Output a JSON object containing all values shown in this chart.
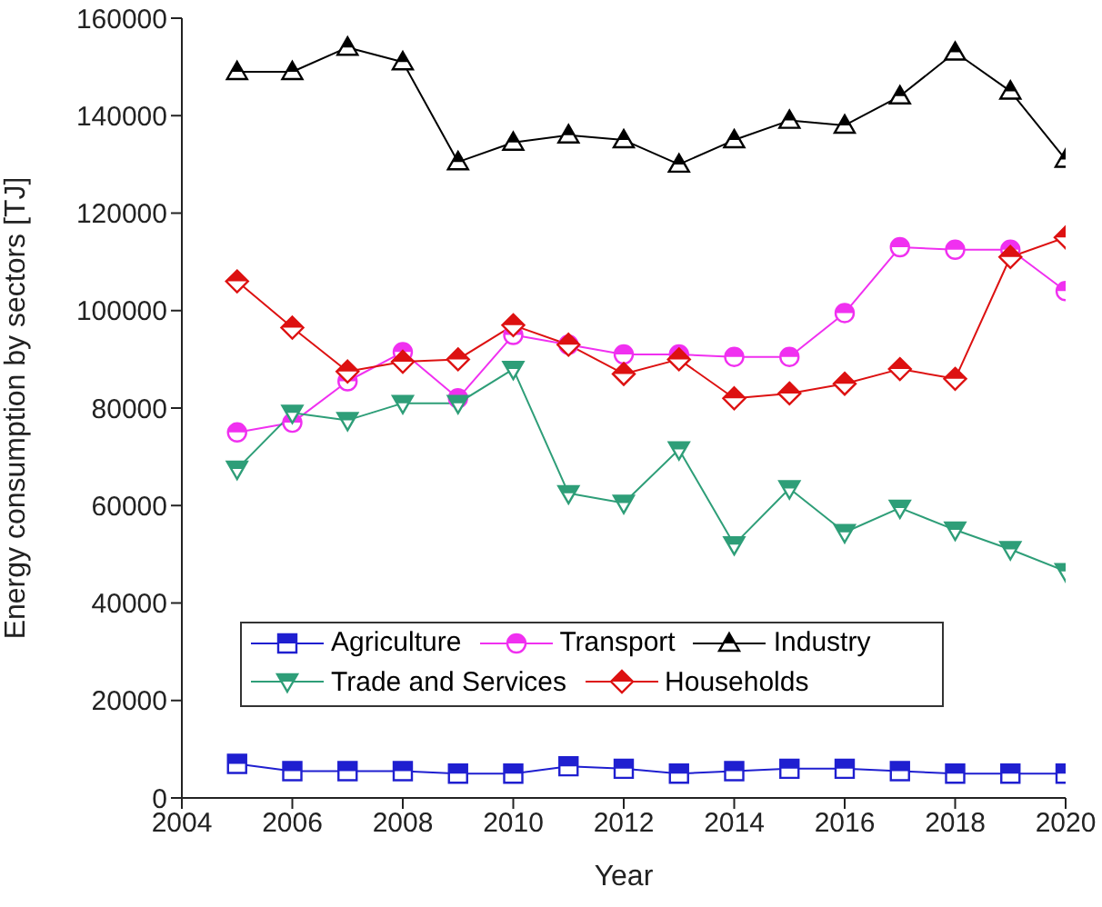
{
  "chart_data": {
    "type": "line",
    "xlabel": "Year",
    "ylabel": "Energy consumption by sectors  [TJ]",
    "x": [
      2005,
      2006,
      2007,
      2008,
      2009,
      2010,
      2011,
      2012,
      2013,
      2014,
      2015,
      2016,
      2017,
      2018,
      2019,
      2020
    ],
    "xlim": [
      2004,
      2020
    ],
    "xticks": [
      2004,
      2006,
      2008,
      2010,
      2012,
      2014,
      2016,
      2018,
      2020
    ],
    "ylim": [
      0,
      160000
    ],
    "yticks": [
      0,
      20000,
      40000,
      60000,
      80000,
      100000,
      120000,
      140000,
      160000
    ],
    "grid": false,
    "legend": "bottom left",
    "line_style": "solid",
    "series": [
      {
        "name": "Agriculture",
        "color": "#1f1fd0",
        "marker": "square",
        "values": [
          7000,
          5500,
          5500,
          5500,
          5000,
          5000,
          6500,
          6000,
          5000,
          5500,
          6000,
          6000,
          5500,
          5000,
          5000,
          5000
        ]
      },
      {
        "name": "Transport",
        "color": "#f030f0",
        "marker": "circle",
        "values": [
          75000,
          77000,
          85500,
          91500,
          82000,
          95000,
          93000,
          91000,
          91000,
          90500,
          90500,
          99500,
          113000,
          112500,
          112500,
          104000
        ]
      },
      {
        "name": "Industry",
        "color": "#000000",
        "marker": "triangle",
        "values": [
          149000,
          149000,
          154000,
          151000,
          130500,
          134500,
          136000,
          135000,
          130000,
          135000,
          139000,
          138000,
          144000,
          153000,
          145000,
          131000
        ]
      },
      {
        "name": "Trade and Services",
        "color": "#2e9e78",
        "marker": "triangle-down",
        "values": [
          67500,
          79000,
          77500,
          81000,
          81000,
          88000,
          62500,
          60500,
          71500,
          52000,
          63500,
          54500,
          59500,
          55000,
          51000,
          46500
        ]
      },
      {
        "name": "Households",
        "color": "#dd1111",
        "marker": "diamond",
        "values": [
          106000,
          96500,
          87500,
          89500,
          90000,
          97000,
          93000,
          87000,
          90000,
          82000,
          83000,
          85000,
          88000,
          86000,
          111000,
          115000
        ]
      }
    ]
  }
}
